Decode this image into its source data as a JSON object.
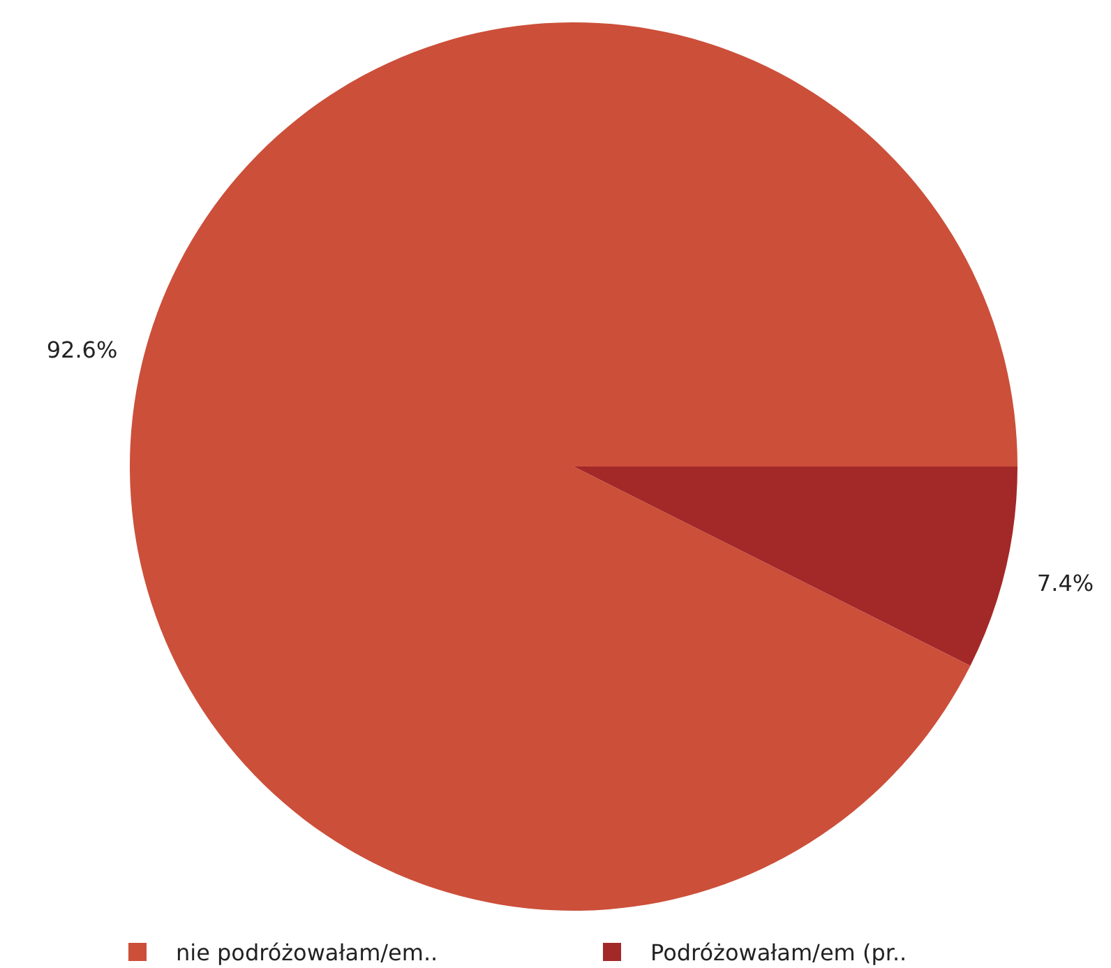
{
  "chart_data": {
    "type": "pie",
    "categories": [
      "nie podróżowałam/em..",
      "Podróżowałam/em (pr.."
    ],
    "values": [
      92.6,
      7.4
    ],
    "colors": [
      "#cc4f3a",
      "#a32828"
    ],
    "value_labels": [
      "92.6%",
      "7.4%"
    ],
    "legend": "bottom"
  }
}
